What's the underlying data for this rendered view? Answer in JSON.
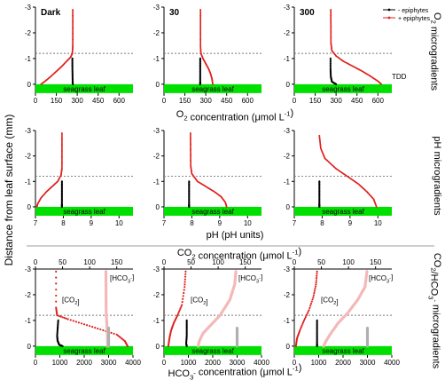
{
  "figure": {
    "y_axis_label": "Distance from leaf surface (mm)",
    "row_titles": [
      "O",
      "2",
      " microgradients",
      "pH microgradients",
      "CO",
      "2",
      "/HCO",
      "3",
      "-",
      " microgradients"
    ],
    "tdd_label": "TDD",
    "leaf_label": "seagrass leaf",
    "legend": [
      {
        "label": "- epiphytes",
        "color": "#000000"
      },
      {
        "label": "+ epiphytes",
        "color": "#e0201c"
      }
    ],
    "row1_xlabel": [
      "O",
      "2",
      " concentration (",
      "μ",
      "mol L",
      "-1",
      ")"
    ],
    "row2_xlabel": "pH (pH units)",
    "row3_top_xlabel": [
      "CO",
      "2",
      " concentration (",
      "μ",
      "mol L",
      "-1",
      ")"
    ],
    "row3_bottom_xlabel": [
      "HCO",
      "3",
      "-",
      " concentration (",
      "μ",
      "mol L",
      "-1",
      ")"
    ],
    "species_labels": {
      "co2": [
        "[CO",
        "2",
        "]"
      ],
      "hco3": [
        "[HCO",
        "3",
        "-",
        "]"
      ]
    },
    "colors": {
      "minus": "#000000",
      "plus": "#e0201c",
      "plus_hco3": "#f4b8b8",
      "minus_hco3": "#b0b0b0",
      "leaf": "#00e000",
      "tdd": "#777777"
    }
  },
  "chart_data": [
    {
      "type": "line",
      "panel": "O2",
      "title": "Dark",
      "xlim": [
        0,
        700
      ],
      "xticks": [
        "0",
        "150",
        "300",
        "450",
        "600"
      ],
      "ylim": [
        0.35,
        -3
      ],
      "yticks": [
        "-3",
        "-2",
        "-1",
        "0"
      ],
      "tdd": -1.2,
      "series": [
        {
          "name": "- epiphytes",
          "x": [
            265,
            265,
            266,
            267,
            268
          ],
          "y": [
            -1.0,
            -0.7,
            -0.4,
            -0.1,
            0.0
          ]
        },
        {
          "name": "+ epiphytes",
          "x": [
            268,
            268,
            265,
            252,
            225,
            190,
            150,
            110,
            70,
            40
          ],
          "y": [
            -2.9,
            -1.5,
            -1.2,
            -1.05,
            -0.9,
            -0.7,
            -0.5,
            -0.3,
            -0.12,
            0.0
          ]
        }
      ]
    },
    {
      "type": "line",
      "panel": "O2",
      "title": "30",
      "xlim": [
        0,
        700
      ],
      "xticks": [
        "0",
        "150",
        "300",
        "450",
        "600"
      ],
      "ylim": [
        0.35,
        -3
      ],
      "yticks": [
        "-3",
        "-2",
        "-1",
        "0"
      ],
      "tdd": -1.2,
      "series": [
        {
          "name": "- epiphytes",
          "x": [
            260,
            260,
            260,
            260,
            260
          ],
          "y": [
            -1.0,
            -0.7,
            -0.4,
            -0.1,
            0.0
          ]
        },
        {
          "name": "+ epiphytes",
          "x": [
            262,
            262,
            265,
            280,
            300,
            320,
            335,
            345,
            350
          ],
          "y": [
            -2.9,
            -1.5,
            -1.2,
            -1.0,
            -0.8,
            -0.6,
            -0.4,
            -0.2,
            0.0
          ]
        }
      ]
    },
    {
      "type": "line",
      "panel": "O2",
      "title": "300",
      "xlim": [
        0,
        700
      ],
      "xticks": [
        "0",
        "150",
        "300",
        "450",
        "600"
      ],
      "ylim": [
        0.35,
        -3
      ],
      "yticks": [
        "-3",
        "-2",
        "-1",
        "0"
      ],
      "tdd": -1.2,
      "series": [
        {
          "name": "- epiphytes",
          "x": [
            260,
            260,
            262,
            270,
            300
          ],
          "y": [
            -1.0,
            -0.6,
            -0.3,
            -0.1,
            0.0
          ]
        },
        {
          "name": "+ epiphytes",
          "x": [
            262,
            263,
            270,
            300,
            350,
            420,
            490,
            550,
            600,
            625
          ],
          "y": [
            -2.9,
            -1.6,
            -1.3,
            -1.1,
            -0.9,
            -0.7,
            -0.5,
            -0.3,
            -0.12,
            0.0
          ]
        }
      ]
    },
    {
      "type": "line",
      "panel": "pH",
      "xlim": [
        7,
        10.5
      ],
      "xticks": [
        "7",
        "8",
        "9",
        "10"
      ],
      "ylim": [
        0.35,
        -3
      ],
      "yticks": [
        "-3",
        "-2",
        "-1",
        "0"
      ],
      "tdd": -1.2,
      "series": [
        {
          "name": "- epiphytes",
          "x": [
            7.95,
            7.95,
            7.95,
            7.95,
            7.95
          ],
          "y": [
            -1.0,
            -0.7,
            -0.4,
            -0.1,
            0.0
          ]
        },
        {
          "name": "+ epiphytes",
          "x": [
            7.95,
            7.95,
            7.92,
            7.8,
            7.6,
            7.4,
            7.2,
            7.08,
            7.05
          ],
          "y": [
            -2.9,
            -1.5,
            -1.25,
            -1.0,
            -0.8,
            -0.6,
            -0.35,
            -0.12,
            0.0
          ]
        }
      ]
    },
    {
      "type": "line",
      "panel": "pH",
      "xlim": [
        7,
        10.5
      ],
      "xticks": [
        "7",
        "8",
        "9",
        "10"
      ],
      "ylim": [
        0.35,
        -3
      ],
      "yticks": [
        "-3",
        "-2",
        "-1",
        "0"
      ],
      "tdd": -1.2,
      "series": [
        {
          "name": "- epiphytes",
          "x": [
            7.9,
            7.9,
            7.9,
            7.9,
            7.9
          ],
          "y": [
            -1.0,
            -0.7,
            -0.4,
            -0.1,
            0.0
          ]
        },
        {
          "name": "+ epiphytes",
          "x": [
            7.95,
            7.96,
            8.0,
            8.2,
            8.5,
            8.8,
            9.05,
            9.2,
            9.25
          ],
          "y": [
            -2.9,
            -1.6,
            -1.3,
            -1.0,
            -0.8,
            -0.6,
            -0.4,
            -0.18,
            0.0
          ]
        }
      ]
    },
    {
      "type": "line",
      "panel": "pH",
      "xlim": [
        7,
        10.5
      ],
      "xticks": [
        "7",
        "8",
        "9",
        "10"
      ],
      "ylim": [
        0.35,
        -3
      ],
      "yticks": [
        "-3",
        "-2",
        "-1",
        "0"
      ],
      "tdd": -1.2,
      "series": [
        {
          "name": "- epiphytes",
          "x": [
            7.9,
            7.9,
            7.9,
            7.9,
            7.9
          ],
          "y": [
            -1.0,
            -0.7,
            -0.4,
            -0.1,
            0.0
          ]
        },
        {
          "name": "+ epiphytes",
          "x": [
            7.9,
            7.95,
            8.1,
            8.5,
            8.9,
            9.3,
            9.6,
            9.85,
            9.95
          ],
          "y": [
            -2.8,
            -2.3,
            -1.9,
            -1.5,
            -1.2,
            -0.9,
            -0.6,
            -0.3,
            0.0
          ]
        }
      ]
    },
    {
      "type": "line",
      "panel": "CO2/HCO3",
      "top_xlim": [
        0,
        180
      ],
      "top_xticks": [
        "0",
        "50",
        "100",
        "150"
      ],
      "xlim": [
        0,
        4000
      ],
      "xticks": [
        "0",
        "1000",
        "2000",
        "3000",
        "4000"
      ],
      "ylim": [
        0.35,
        -3
      ],
      "yticks": [
        "-3",
        "-2",
        "-1",
        "0"
      ],
      "tdd": -1.2,
      "series": [
        {
          "name": "- epiphytes CO2",
          "x": [
            42,
            41,
            40,
            41,
            44,
            50
          ],
          "y": [
            -1.0,
            -0.7,
            -0.4,
            -0.2,
            -0.05,
            0.0
          ]
        },
        {
          "name": "+ epiphytes CO2",
          "x": [
            38,
            38,
            40,
            60,
            90,
            120,
            150,
            165,
            170
          ],
          "y": [
            -2.9,
            -1.5,
            -1.2,
            -1.05,
            -0.85,
            -0.65,
            -0.45,
            -0.2,
            0.0
          ]
        },
        {
          "name": "+ epiphytes HCO3",
          "x": [
            2890,
            2895,
            2900,
            2920,
            2950,
            2960
          ],
          "y": [
            -2.9,
            -2.0,
            -1.4,
            -1.0,
            -0.5,
            0.0
          ]
        },
        {
          "name": "- epiphytes HCO3",
          "x": [
            3000,
            3000
          ],
          "y": [
            -0.7,
            0.0
          ]
        }
      ]
    },
    {
      "type": "line",
      "panel": "CO2/HCO3",
      "top_xlim": [
        0,
        180
      ],
      "top_xticks": [
        "0",
        "50",
        "100",
        "150"
      ],
      "xlim": [
        0,
        4000
      ],
      "xticks": [
        "0",
        "1000",
        "2000",
        "3000",
        "4000"
      ],
      "ylim": [
        0.35,
        -3
      ],
      "yticks": [
        "-3",
        "-2",
        "-1",
        "0"
      ],
      "tdd": -1.2,
      "series": [
        {
          "name": "- epiphytes CO2",
          "x": [
            42,
            42,
            42,
            41,
            42
          ],
          "y": [
            -1.0,
            -0.7,
            -0.4,
            -0.1,
            0.0
          ]
        },
        {
          "name": "+ epiphytes CO2",
          "x": [
            40,
            38,
            33,
            25,
            18,
            13,
            10,
            8
          ],
          "y": [
            -2.9,
            -2.3,
            -1.6,
            -1.2,
            -0.9,
            -0.6,
            -0.3,
            0.0
          ]
        },
        {
          "name": "+ epiphytes HCO3",
          "x": [
            2950,
            2900,
            2700,
            2300,
            1900,
            1600,
            1450,
            1400
          ],
          "y": [
            -2.9,
            -2.4,
            -1.8,
            -1.2,
            -0.8,
            -0.5,
            -0.2,
            0.0
          ]
        },
        {
          "name": "- epiphytes HCO3",
          "x": [
            3000,
            3000
          ],
          "y": [
            -0.7,
            0.0
          ]
        }
      ]
    },
    {
      "type": "line",
      "panel": "CO2/HCO3",
      "top_xlim": [
        0,
        180
      ],
      "top_xticks": [
        "0",
        "50",
        "100",
        "150"
      ],
      "xlim": [
        0,
        4000
      ],
      "xticks": [
        "0",
        "1000",
        "2000",
        "3000",
        "4000"
      ],
      "ylim": [
        0.35,
        -3
      ],
      "yticks": [
        "-3",
        "-2",
        "-1",
        "0"
      ],
      "tdd": -1.2,
      "series": [
        {
          "name": "- epiphytes CO2",
          "x": [
            42,
            42,
            42,
            42,
            42
          ],
          "y": [
            -1.0,
            -0.7,
            -0.4,
            -0.1,
            0.0
          ]
        },
        {
          "name": "+ epiphytes CO2",
          "x": [
            42,
            40,
            35,
            27,
            18,
            10,
            5,
            3
          ],
          "y": [
            -2.9,
            -2.4,
            -1.9,
            -1.4,
            -1.0,
            -0.6,
            -0.3,
            0.0
          ]
        },
        {
          "name": "+ epiphytes HCO3",
          "x": [
            2980,
            2900,
            2600,
            2200,
            1800,
            1500,
            1300,
            1200
          ],
          "y": [
            -2.9,
            -2.3,
            -1.8,
            -1.3,
            -0.9,
            -0.5,
            -0.2,
            0.0
          ]
        },
        {
          "name": "- epiphytes HCO3",
          "x": [
            3000,
            3000
          ],
          "y": [
            -0.7,
            0.0
          ]
        }
      ]
    }
  ]
}
